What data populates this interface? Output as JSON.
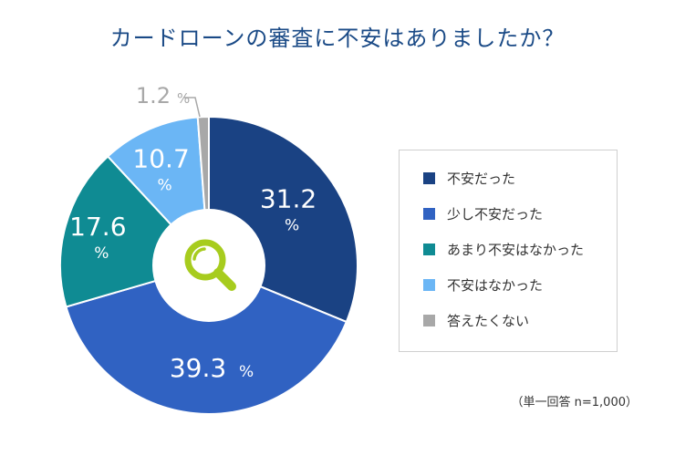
{
  "title": "カードローンの審査に不安はありましたか？",
  "note": "（単一回答 n=1,000）",
  "icon": "magnifier-icon",
  "chart_data": {
    "type": "pie",
    "style": "donut",
    "start": "top, clockwise",
    "unit": "%",
    "categories": [
      "不安だった",
      "少し不安だった",
      "あまり不安はなかった",
      "不安はなかった",
      "答えたくない"
    ],
    "values": [
      31.2,
      39.3,
      17.6,
      10.7,
      1.2
    ],
    "labels": [
      {
        "num": "31.2",
        "unit": "%"
      },
      {
        "num": "39.3",
        "unit": "%"
      },
      {
        "num": "17.6",
        "unit": "%"
      },
      {
        "num": "10.7",
        "unit": "%"
      },
      {
        "num": "1.2",
        "unit": "%"
      }
    ],
    "colors": [
      "#1a4283",
      "#3062c2",
      "#0f8b93",
      "#6bb6f5",
      "#a8a8a8"
    ],
    "legend_position": "right"
  }
}
